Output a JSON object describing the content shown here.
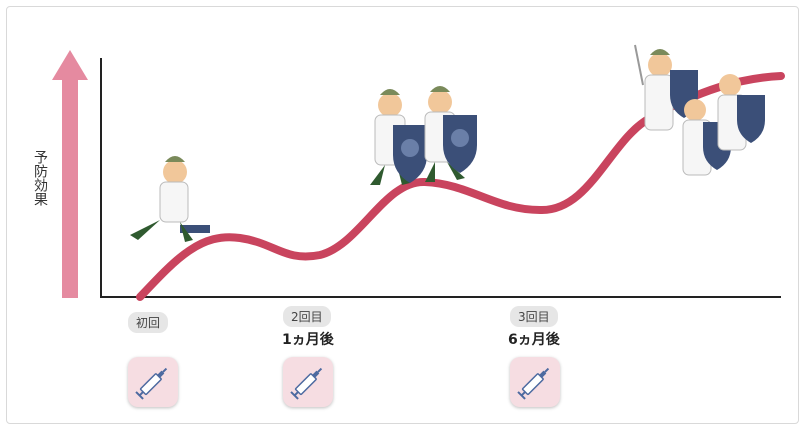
{
  "axis": {
    "y_label": "予防効果"
  },
  "doses": [
    {
      "badge": "初回",
      "timing": ""
    },
    {
      "badge": "2回目",
      "timing": "1ヵ月後"
    },
    {
      "badge": "3回目",
      "timing": "6ヵ月後"
    }
  ],
  "icons": [
    "syringe-icon",
    "soldier-icon",
    "shield-icon",
    "up-arrow-icon"
  ],
  "colors": {
    "curve": "#c9445e",
    "arrow": "#e58aa0",
    "axis": "#222222",
    "soldier_shield": "#3b4f78",
    "syringe_bg": "#f6dde2"
  }
}
